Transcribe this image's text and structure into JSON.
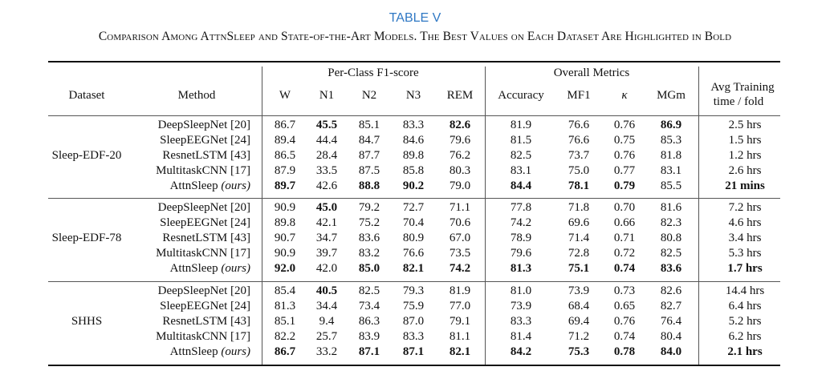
{
  "table_label": "TABLE V",
  "caption": "Comparison Among AttnSleep and State-of-the-Art Models. The Best Values on Each Dataset Are Highlighted in Bold",
  "group_headers": {
    "per_class": "Per-Class F1-score",
    "overall": "Overall Metrics"
  },
  "columns": {
    "dataset": "Dataset",
    "method": "Method",
    "w": "W",
    "n1": "N1",
    "n2": "N2",
    "n3": "N3",
    "rem": "REM",
    "accuracy": "Accuracy",
    "mf1": "MF1",
    "kappa": "κ",
    "mgm": "MGm",
    "time_line1": "Avg Training",
    "time_line2": "time / fold"
  },
  "ours_suffix": "(ours)",
  "datasets": [
    {
      "name": "Sleep-EDF-20",
      "rows": [
        {
          "method": "DeepSleepNet [20]",
          "ours": false,
          "values": [
            "86.7",
            "45.5",
            "85.1",
            "83.3",
            "82.6",
            "81.9",
            "76.6",
            "0.76",
            "86.9",
            "2.5 hrs"
          ],
          "bold": [
            false,
            true,
            false,
            false,
            true,
            false,
            false,
            false,
            true,
            false
          ]
        },
        {
          "method": "SleepEEGNet [24]",
          "ours": false,
          "values": [
            "89.4",
            "44.4",
            "84.7",
            "84.6",
            "79.6",
            "81.5",
            "76.6",
            "0.75",
            "85.3",
            "1.5 hrs"
          ],
          "bold": [
            false,
            false,
            false,
            false,
            false,
            false,
            false,
            false,
            false,
            false
          ]
        },
        {
          "method": "ResnetLSTM [43]",
          "ours": false,
          "values": [
            "86.5",
            "28.4",
            "87.7",
            "89.8",
            "76.2",
            "82.5",
            "73.7",
            "0.76",
            "81.8",
            "1.2 hrs"
          ],
          "bold": [
            false,
            false,
            false,
            false,
            false,
            false,
            false,
            false,
            false,
            false
          ]
        },
        {
          "method": "MultitaskCNN [17]",
          "ours": false,
          "values": [
            "87.9",
            "33.5",
            "87.5",
            "85.8",
            "80.3",
            "83.1",
            "75.0",
            "0.77",
            "83.1",
            "2.6 hrs"
          ],
          "bold": [
            false,
            false,
            false,
            false,
            false,
            false,
            false,
            false,
            false,
            false
          ]
        },
        {
          "method": "AttnSleep",
          "ours": true,
          "values": [
            "89.7",
            "42.6",
            "88.8",
            "90.2",
            "79.0",
            "84.4",
            "78.1",
            "0.79",
            "85.5",
            "21 mins"
          ],
          "bold": [
            true,
            false,
            true,
            true,
            false,
            true,
            true,
            true,
            false,
            true
          ]
        }
      ]
    },
    {
      "name": "Sleep-EDF-78",
      "rows": [
        {
          "method": "DeepSleepNet [20]",
          "ours": false,
          "values": [
            "90.9",
            "45.0",
            "79.2",
            "72.7",
            "71.1",
            "77.8",
            "71.8",
            "0.70",
            "81.6",
            "7.2 hrs"
          ],
          "bold": [
            false,
            true,
            false,
            false,
            false,
            false,
            false,
            false,
            false,
            false
          ]
        },
        {
          "method": "SleepEEGNet [24]",
          "ours": false,
          "values": [
            "89.8",
            "42.1",
            "75.2",
            "70.4",
            "70.6",
            "74.2",
            "69.6",
            "0.66",
            "82.3",
            "4.6 hrs"
          ],
          "bold": [
            false,
            false,
            false,
            false,
            false,
            false,
            false,
            false,
            false,
            false
          ]
        },
        {
          "method": "ResnetLSTM [43]",
          "ours": false,
          "values": [
            "90.7",
            "34.7",
            "83.6",
            "80.9",
            "67.0",
            "78.9",
            "71.4",
            "0.71",
            "80.8",
            "3.4 hrs"
          ],
          "bold": [
            false,
            false,
            false,
            false,
            false,
            false,
            false,
            false,
            false,
            false
          ]
        },
        {
          "method": "MultitaskCNN [17]",
          "ours": false,
          "values": [
            "90.9",
            "39.7",
            "83.2",
            "76.6",
            "73.5",
            "79.6",
            "72.8",
            "0.72",
            "82.5",
            "5.3 hrs"
          ],
          "bold": [
            false,
            false,
            false,
            false,
            false,
            false,
            false,
            false,
            false,
            false
          ]
        },
        {
          "method": "AttnSleep",
          "ours": true,
          "values": [
            "92.0",
            "42.0",
            "85.0",
            "82.1",
            "74.2",
            "81.3",
            "75.1",
            "0.74",
            "83.6",
            "1.7 hrs"
          ],
          "bold": [
            true,
            false,
            true,
            true,
            true,
            true,
            true,
            true,
            true,
            true
          ]
        }
      ]
    },
    {
      "name": "SHHS",
      "rows": [
        {
          "method": "DeepSleepNet [20]",
          "ours": false,
          "values": [
            "85.4",
            "40.5",
            "82.5",
            "79.3",
            "81.9",
            "81.0",
            "73.9",
            "0.73",
            "82.6",
            "14.4 hrs"
          ],
          "bold": [
            false,
            true,
            false,
            false,
            false,
            false,
            false,
            false,
            false,
            false
          ]
        },
        {
          "method": "SleepEEGNet [24]",
          "ours": false,
          "values": [
            "81.3",
            "34.4",
            "73.4",
            "75.9",
            "77.0",
            "73.9",
            "68.4",
            "0.65",
            "82.7",
            "6.4 hrs"
          ],
          "bold": [
            false,
            false,
            false,
            false,
            false,
            false,
            false,
            false,
            false,
            false
          ]
        },
        {
          "method": "ResnetLSTM [43]",
          "ours": false,
          "values": [
            "85.1",
            "9.4",
            "86.3",
            "87.0",
            "79.1",
            "83.3",
            "69.4",
            "0.76",
            "76.4",
            "5.2 hrs"
          ],
          "bold": [
            false,
            false,
            false,
            false,
            false,
            false,
            false,
            false,
            false,
            false
          ]
        },
        {
          "method": "MultitaskCNN [17]",
          "ours": false,
          "values": [
            "82.2",
            "25.7",
            "83.9",
            "83.3",
            "81.1",
            "81.4",
            "71.2",
            "0.74",
            "80.4",
            "6.2 hrs"
          ],
          "bold": [
            false,
            false,
            false,
            false,
            false,
            false,
            false,
            false,
            false,
            false
          ]
        },
        {
          "method": "AttnSleep",
          "ours": true,
          "values": [
            "86.7",
            "33.2",
            "87.1",
            "87.1",
            "82.1",
            "84.2",
            "75.3",
            "0.78",
            "84.0",
            "2.1 hrs"
          ],
          "bold": [
            true,
            false,
            true,
            true,
            true,
            true,
            true,
            true,
            true,
            true
          ]
        }
      ]
    }
  ]
}
